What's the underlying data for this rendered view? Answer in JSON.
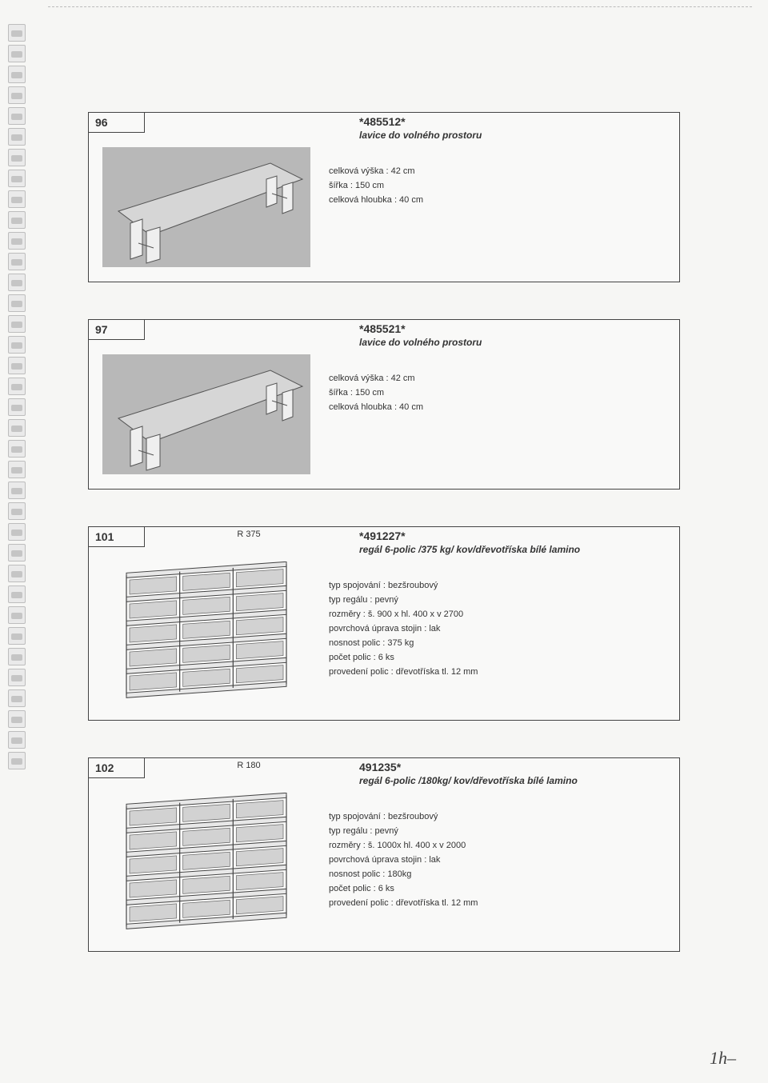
{
  "cards": [
    {
      "num": "96",
      "mid": "",
      "code": "*485512*",
      "title": "lavice do volného prostoru",
      "illus": "bench",
      "specs": [
        "celková výška : 42 cm",
        "šířka : 150 cm",
        "celková hloubka : 40 cm"
      ]
    },
    {
      "num": "97",
      "mid": "",
      "code": "*485521*",
      "title": "lavice do volného prostoru",
      "illus": "bench",
      "specs": [
        "celková výška : 42 cm",
        "šířka : 150 cm",
        "celková hloubka : 40 cm"
      ]
    },
    {
      "num": "101",
      "mid": "R 375",
      "code": "*491227*",
      "title": "regál 6-polic /375 kg/ kov/dřevotříska bílé lamino",
      "illus": "shelf",
      "specs": [
        "typ spojování : bezšroubový",
        "typ regálu : pevný",
        "rozměry : š. 900 x hl. 400 x v 2700",
        "povrchová úprava stojin : lak",
        "nosnost polic : 375 kg",
        "počet polic : 6 ks",
        "provedení polic : dřevotříska tl. 12 mm"
      ]
    },
    {
      "num": "102",
      "mid": "R 180",
      "code": "491235*",
      "title": "regál 6-polic /180kg/ kov/dřevotříska bílé lamino",
      "illus": "shelf",
      "specs": [
        "typ spojování : bezšroubový",
        "typ regálu : pevný",
        "rozměry : š. 1000x hl. 400 x v 2000",
        "povrchová úprava stojin : lak",
        "nosnost polic : 180kg",
        "počet polic : 6 ks",
        "provedení polic : dřevotříska tl. 12 mm"
      ]
    }
  ],
  "signature": "1h‒",
  "binder_count": 36
}
